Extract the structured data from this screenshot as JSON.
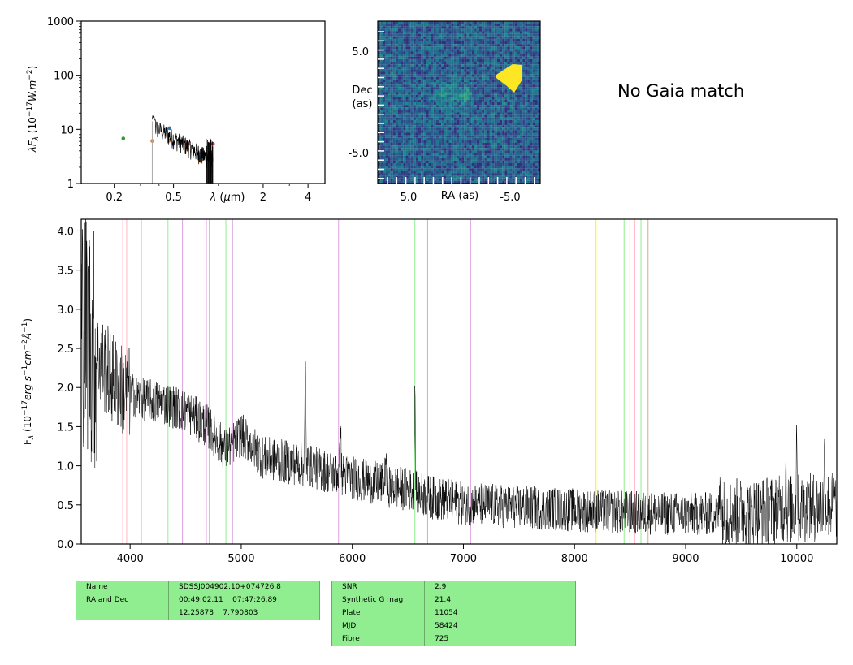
{
  "gaia_text": "No Gaia match",
  "sed_chart": {
    "type": "scatter",
    "ylabel": "λF_λ (10^-17 W.m^-2)",
    "xlabel": "λ (μm)",
    "xscale": "log",
    "yscale": "log",
    "xlim": [
      0.12,
      5.2
    ],
    "ylim": [
      1,
      1000
    ],
    "x_ticks": [
      "0.2",
      "0.5",
      "2",
      "4"
    ],
    "y_ticks": [
      "1",
      "10",
      "100",
      "1000"
    ],
    "points": [
      {
        "x": 0.23,
        "y": 6.8,
        "color": "#2ca02c"
      },
      {
        "x": 0.36,
        "y": 6.1,
        "color": "#ff7f0e"
      },
      {
        "x": 0.47,
        "y": 10.5,
        "color": "#1f77b4"
      },
      {
        "x": 0.47,
        "y": 6.2,
        "color": "#ff7f0e"
      },
      {
        "x": 0.5,
        "y": 5.6,
        "color": "#9467bd"
      },
      {
        "x": 0.62,
        "y": 5.4,
        "color": "#d62728"
      },
      {
        "x": 0.62,
        "y": 4.3,
        "color": "#ff7f0e"
      },
      {
        "x": 0.75,
        "y": 3.5,
        "color": "#9467bd"
      },
      {
        "x": 0.75,
        "y": 3.0,
        "color": "#1f77b4"
      },
      {
        "x": 0.76,
        "y": 2.6,
        "color": "#ff7f0e"
      },
      {
        "x": 0.89,
        "y": 1.7,
        "color": "#ff7f0e"
      },
      {
        "x": 0.92,
        "y": 5.4,
        "color": "#d62728"
      }
    ]
  },
  "image_panel": {
    "ylabel": "Dec\n(as)",
    "xlabel": "RA (as)",
    "x_ticks": [
      "5.0",
      "-5.0"
    ],
    "y_ticks": [
      "5.0",
      "-5.0"
    ],
    "bright_blob": "yellow triangular saturated source upper right"
  },
  "spectrum_chart": {
    "type": "line",
    "ylabel": "F_λ (10^-17 erg s^-1 cm^-2 Å^-1)",
    "xlim": [
      3560,
      10360
    ],
    "ylim": [
      0.0,
      4.15
    ],
    "x_ticks": [
      4000,
      5000,
      6000,
      7000,
      8000,
      9000,
      10000
    ],
    "y_ticks": [
      "0.0",
      "0.5",
      "1.0",
      "1.5",
      "2.0",
      "2.5",
      "3.0",
      "3.5",
      "4.0"
    ],
    "lines": [
      {
        "x": 3934,
        "color": "#ffb6c1"
      },
      {
        "x": 3969,
        "color": "#ffb6c1"
      },
      {
        "x": 4102,
        "color": "#90ee90"
      },
      {
        "x": 4341,
        "color": "#90ee90"
      },
      {
        "x": 4471,
        "color": "#dda0dd"
      },
      {
        "x": 4686,
        "color": "#dda0dd"
      },
      {
        "x": 4713,
        "color": "#dda0dd"
      },
      {
        "x": 4862,
        "color": "#90ee90"
      },
      {
        "x": 4922,
        "color": "#dda0dd"
      },
      {
        "x": 5876,
        "color": "#dda0dd"
      },
      {
        "x": 6563,
        "color": "#90ee90"
      },
      {
        "x": 6678,
        "color": "#dda0dd"
      },
      {
        "x": 7065,
        "color": "#dda0dd"
      },
      {
        "x": 8190,
        "color": "#ffff00"
      },
      {
        "x": 8446,
        "color": "#90ee90"
      },
      {
        "x": 8498,
        "color": "#ffb6c1"
      },
      {
        "x": 8542,
        "color": "#ffb6c1"
      },
      {
        "x": 8598,
        "color": "#90ee90"
      },
      {
        "x": 8662,
        "color": "#c8b48c"
      }
    ],
    "continuum": [
      [
        3560,
        2.9
      ],
      [
        3700,
        2.4
      ],
      [
        3900,
        2.0
      ],
      [
        4100,
        1.85
      ],
      [
        4300,
        1.8
      ],
      [
        4500,
        1.7
      ],
      [
        4700,
        1.5
      ],
      [
        4860,
        1.2
      ],
      [
        5000,
        1.4
      ],
      [
        5200,
        1.1
      ],
      [
        5400,
        1.05
      ],
      [
        5600,
        1.0
      ],
      [
        5800,
        0.92
      ],
      [
        6000,
        0.85
      ],
      [
        6300,
        0.75
      ],
      [
        6500,
        0.7
      ],
      [
        6700,
        0.6
      ],
      [
        7000,
        0.52
      ],
      [
        7400,
        0.48
      ],
      [
        7800,
        0.45
      ],
      [
        8200,
        0.42
      ],
      [
        8600,
        0.4
      ],
      [
        9000,
        0.38
      ],
      [
        9500,
        0.4
      ],
      [
        10000,
        0.45
      ],
      [
        10360,
        0.5
      ]
    ],
    "features": [
      {
        "x": 5577,
        "h": 1.3
      },
      {
        "x": 5893,
        "h": 0.8
      },
      {
        "x": 6300,
        "h": 0.4
      },
      {
        "x": 6563,
        "h": 1.35
      },
      {
        "x": 9310,
        "h": 0.5
      },
      {
        "x": 9900,
        "h": 0.6
      },
      {
        "x": 10000,
        "h": 1.1
      },
      {
        "x": 10250,
        "h": 0.6
      }
    ]
  },
  "table_left": {
    "rows": [
      {
        "k": "Name",
        "v": "SDSSJ004902.10+074726.8"
      },
      {
        "k": "RA and Dec",
        "v": "00:49:02.11    07:47:26.89"
      },
      {
        "k": "",
        "v": "12.25878    7.790803"
      }
    ]
  },
  "table_right": {
    "rows": [
      {
        "k": "SNR",
        "v": "2.9"
      },
      {
        "k": "Synthetic G mag",
        "v": "21.4"
      },
      {
        "k": "Plate",
        "v": "11054"
      },
      {
        "k": "MJD",
        "v": "58424"
      },
      {
        "k": "Fibre",
        "v": "725"
      }
    ]
  }
}
